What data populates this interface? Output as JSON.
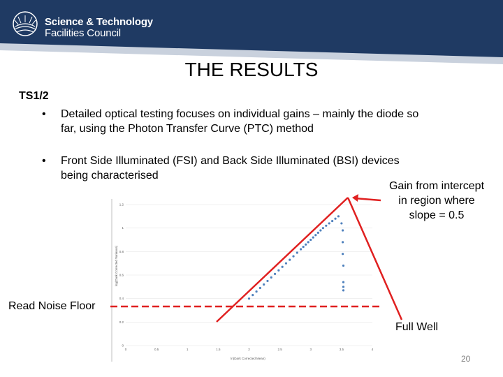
{
  "header": {
    "org_line1": "Science & Technology",
    "org_line2": "Facilities Council",
    "colors": {
      "dark": "#1f3a63",
      "band": "#c9d1dd"
    }
  },
  "slide": {
    "title": "THE RESULTS",
    "subtitle": "TS1/2",
    "bullets": [
      {
        "marker": "•",
        "text": "Detailed optical testing focuses on individual gains – mainly the diode so\nfar, using the Photon Transfer Curve (PTC) method"
      },
      {
        "marker": "•",
        "text": "Front Side Illuminated (FSI) and Back Side Illuminated (BSI) devices\nbeing characterised"
      }
    ],
    "annotations": {
      "gain": "Gain from intercept\nin region where\nslope = 0.5",
      "read_noise": "Read Noise Floor",
      "full_well": "Full Well"
    },
    "page_number": "20",
    "annotation_color": "#e02020"
  },
  "chart_data": {
    "type": "scatter",
    "title": "",
    "xlabel": "ln(Dark Corrected Mean)",
    "ylabel": "log(Dark Corrected Variance)",
    "xlim": [
      0,
      4
    ],
    "ylim": [
      0,
      1.2
    ],
    "x_ticks": [
      "0",
      "0.5",
      "1",
      "1.5",
      "2",
      "2.5",
      "3",
      "3.5",
      "4"
    ],
    "y_ticks": [
      "0",
      "0.2",
      "0.4",
      "0.6",
      "0.8",
      "1",
      "1.2"
    ],
    "series_color": "#4f81bd",
    "series": [
      {
        "points": [
          [
            2.0,
            0.4
          ],
          [
            2.06,
            0.43
          ],
          [
            2.12,
            0.46
          ],
          [
            2.18,
            0.49
          ],
          [
            2.24,
            0.52
          ],
          [
            2.3,
            0.55
          ],
          [
            2.36,
            0.58
          ],
          [
            2.42,
            0.61
          ],
          [
            2.48,
            0.64
          ],
          [
            2.54,
            0.67
          ],
          [
            2.6,
            0.7
          ],
          [
            2.66,
            0.73
          ],
          [
            2.72,
            0.76
          ],
          [
            2.78,
            0.79
          ],
          [
            2.84,
            0.82
          ],
          [
            2.88,
            0.84
          ],
          [
            2.92,
            0.86
          ],
          [
            2.96,
            0.88
          ],
          [
            3.0,
            0.9
          ],
          [
            3.04,
            0.92
          ],
          [
            3.08,
            0.94
          ],
          [
            3.12,
            0.96
          ],
          [
            3.16,
            0.98
          ],
          [
            3.2,
            1.0
          ],
          [
            3.25,
            1.02
          ],
          [
            3.3,
            1.04
          ],
          [
            3.35,
            1.06
          ],
          [
            3.4,
            1.08
          ],
          [
            3.45,
            1.1
          ],
          [
            3.5,
            1.04
          ],
          [
            3.52,
            0.98
          ],
          [
            3.52,
            0.88
          ],
          [
            3.52,
            0.78
          ],
          [
            3.53,
            0.68
          ],
          [
            3.53,
            0.54
          ],
          [
            3.53,
            0.5
          ],
          [
            3.53,
            0.47
          ]
        ]
      }
    ]
  }
}
